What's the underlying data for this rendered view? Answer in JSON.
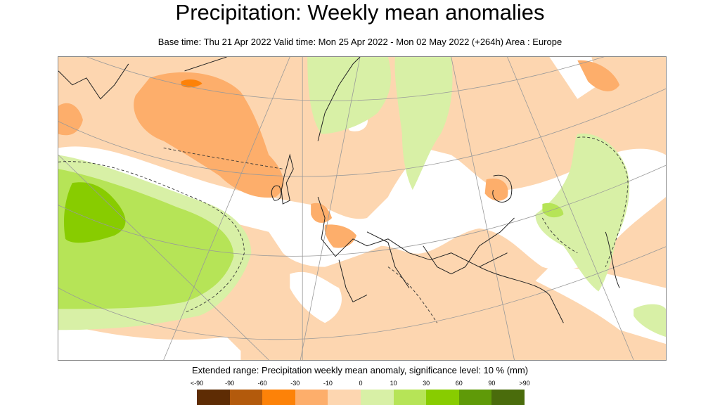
{
  "header": {
    "title": "Precipitation: Weekly mean anomalies",
    "subtitle": "Base time: Thu 21 Apr 2022 Valid time: Mon 25 Apr 2022 - Mon 02 May 2022 (+264h) Area : Europe"
  },
  "map": {
    "area": "Europe",
    "variable": "Precipitation weekly mean anomaly"
  },
  "legend": {
    "title": "Extended range: Precipitation weekly mean anomaly, significance level: 10 % (mm)",
    "labels": [
      "<-90",
      "-90",
      "-60",
      "-30",
      "-10",
      "0",
      "10",
      "30",
      "60",
      "90",
      ">90"
    ],
    "colors": [
      "#5e2c04",
      "#b35a0c",
      "#fd8208",
      "#fdae6b",
      "#fdd6b0",
      "#d8f0a6",
      "#b6e457",
      "#88cc00",
      "#5f9a08",
      "#4a6c0c"
    ]
  }
}
